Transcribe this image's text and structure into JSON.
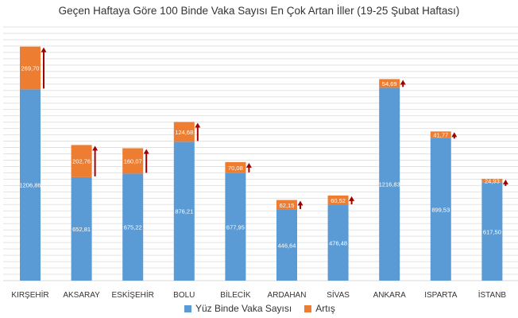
{
  "chart_data": {
    "type": "bar",
    "stacked": true,
    "title": "Geçen Haftaya Göre 100 Binde Vaka Sayısı En Çok Artan İller (19-25 Şubat Haftası)",
    "categories": [
      "KIRŞEHİR",
      "AKSARAY",
      "ESKİŞEHİR",
      "BOLU",
      "BİLECİK",
      "ARDAHAN",
      "SİVAS",
      "ANKARA",
      "ISPARTA",
      "İSTANB"
    ],
    "series": [
      {
        "name": "Yüz Binde Vaka Sayısı",
        "color": "#5b9bd5",
        "values": [
          1206.86,
          652.81,
          675.22,
          876.21,
          677.95,
          446.64,
          476.48,
          1216.83,
          899.53,
          617.5
        ],
        "labels": [
          "1206,86",
          "652,81",
          "675,22",
          "876,21",
          "677,95",
          "446,64",
          "476,48",
          "1216,83",
          "899,53",
          "617,50"
        ]
      },
      {
        "name": "Artış",
        "color": "#ed7d31",
        "values": [
          269.7,
          202.76,
          160.07,
          124.68,
          70.08,
          62.15,
          60.52,
          54.69,
          41.77,
          24.93
        ],
        "labels": [
          "269,70",
          "202,76",
          "160,07",
          "124,68",
          "70,08",
          "62,15",
          "60,52",
          "54,69",
          "41,77",
          "24,93"
        ]
      }
    ],
    "arrow_color": "#a00000",
    "ylim": [
      0,
      1600
    ],
    "grid": true,
    "legend_position": "bottom"
  }
}
